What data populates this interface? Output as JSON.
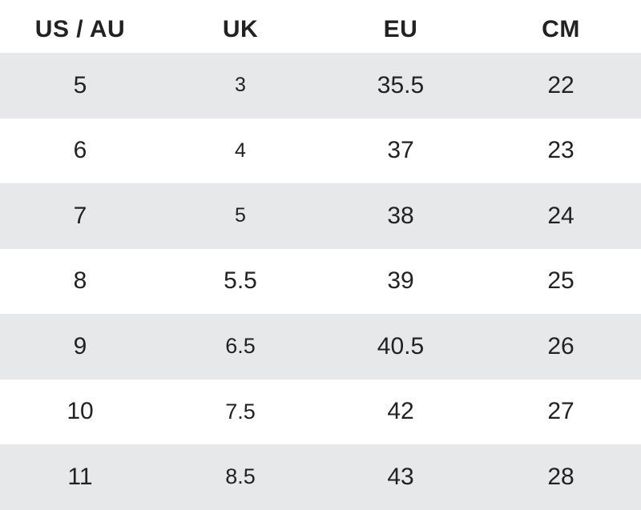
{
  "table": {
    "headers": [
      "US / AU",
      "UK",
      "EU",
      "CM"
    ],
    "rows": [
      [
        "5",
        "3",
        "35.5",
        "22"
      ],
      [
        "6",
        "4",
        "37",
        "23"
      ],
      [
        "7",
        "5",
        "38",
        "24"
      ],
      [
        "8",
        "5.5",
        "39",
        "25"
      ],
      [
        "9",
        "6.5",
        "40.5",
        "26"
      ],
      [
        "10",
        "7.5",
        "42",
        "27"
      ],
      [
        "11",
        "8.5",
        "43",
        "28"
      ]
    ]
  },
  "colors": {
    "shaded_row": "#e6e8ea",
    "plain_row": "#ffffff",
    "text": "#222222"
  }
}
